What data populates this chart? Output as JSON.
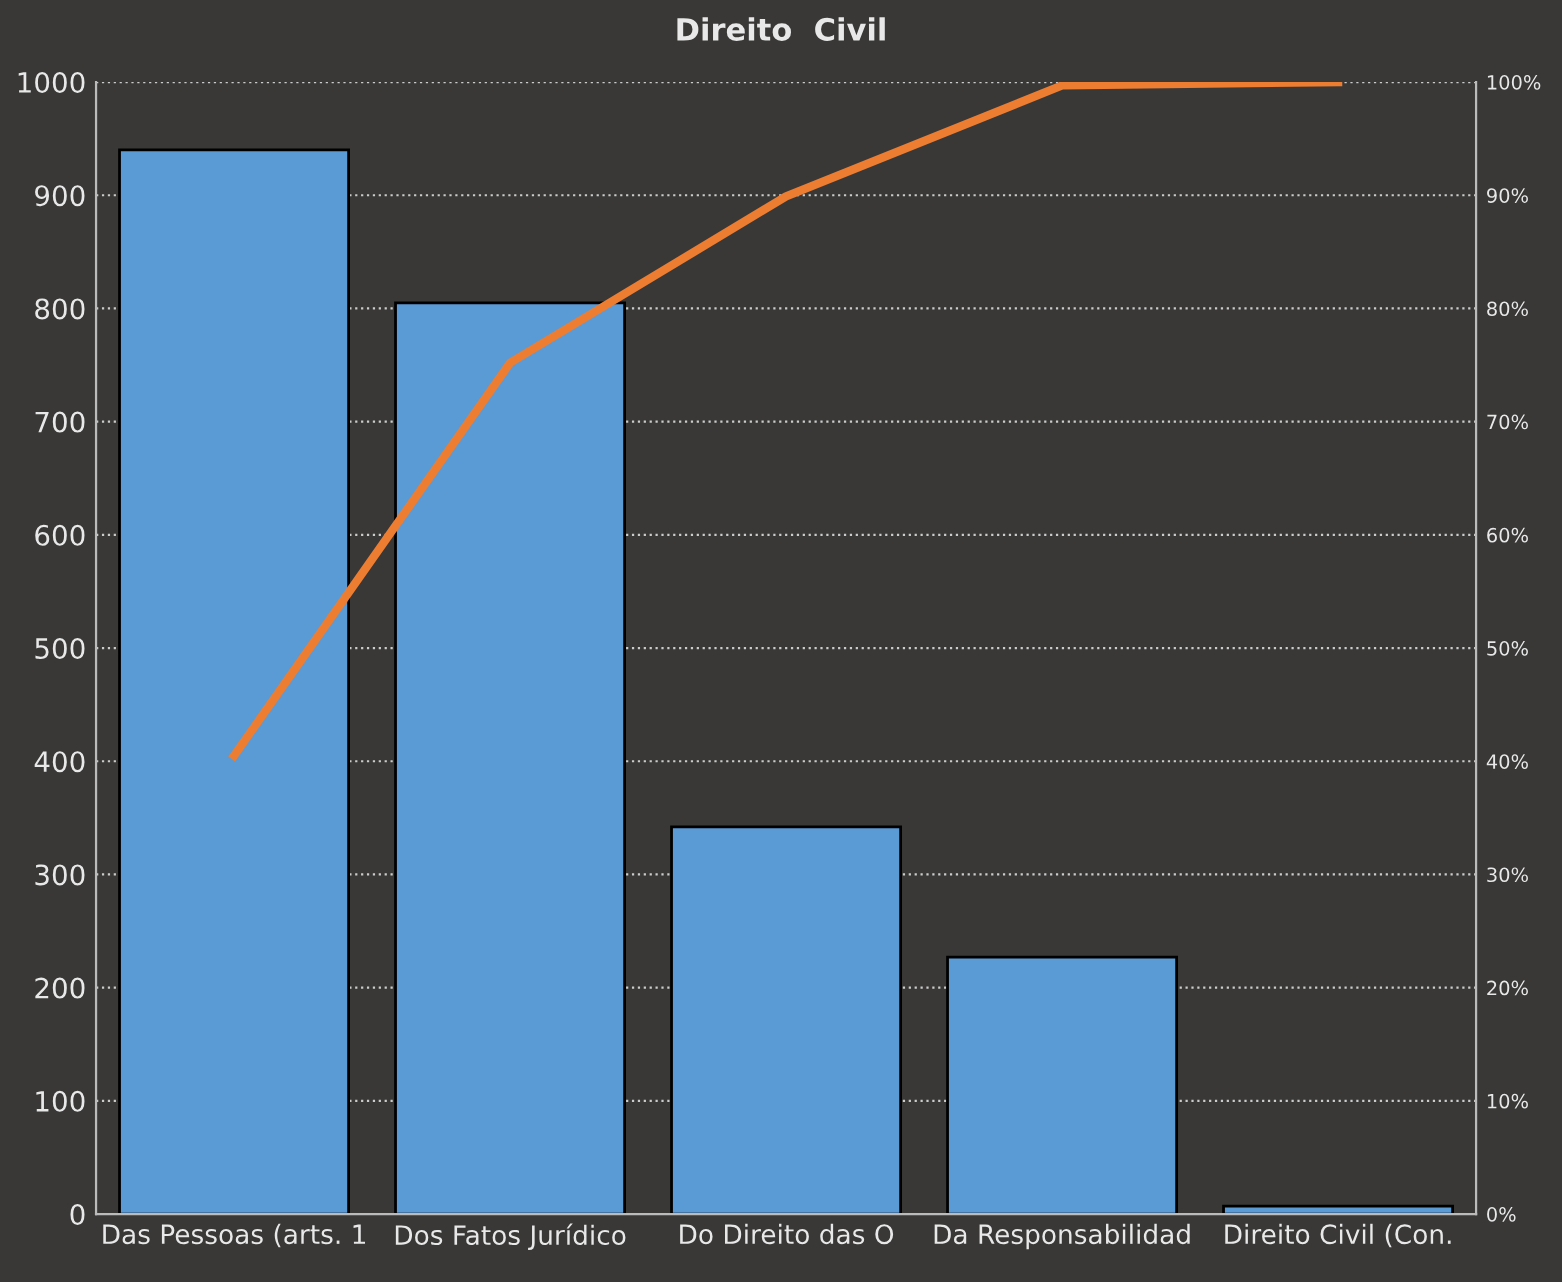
{
  "chart_data": {
    "type": "bar",
    "title": "Direito  Civil",
    "categories": [
      "Das Pessoas (arts. 1",
      "Dos Fatos Jurídico",
      "Do Direito das O",
      "Da Responsabilidad",
      "Direito Civil (Con."
    ],
    "series": [
      {
        "color": "#5b9bd5",
        "values": [
          940,
          805,
          342,
          227,
          7
        ]
      },
      {
        "type": "line",
        "axis": "y2",
        "color": "#ed7d31",
        "values": [
          40.5,
          75.2,
          89.9,
          99.7,
          100
        ]
      }
    ],
    "ylim": [
      0,
      1000
    ],
    "yticks": [
      0,
      100,
      200,
      300,
      400,
      500,
      600,
      700,
      800,
      900,
      1000
    ],
    "y2lim": [
      0,
      100
    ],
    "y2ticks": [
      {
        "value": 0,
        "label": "0%"
      },
      {
        "value": 10,
        "label": "10%"
      },
      {
        "value": 20,
        "label": "20%"
      },
      {
        "value": 30,
        "label": "30%"
      },
      {
        "value": 40,
        "label": "40%"
      },
      {
        "value": 50,
        "label": "50%"
      },
      {
        "value": 60,
        "label": "60%"
      },
      {
        "value": 70,
        "label": "70%"
      },
      {
        "value": 80,
        "label": "80%"
      },
      {
        "value": 90,
        "label": "90%"
      },
      {
        "value": 100,
        "label": "100%"
      }
    ],
    "grid": "y",
    "marker": "none",
    "line_style": "solid"
  }
}
